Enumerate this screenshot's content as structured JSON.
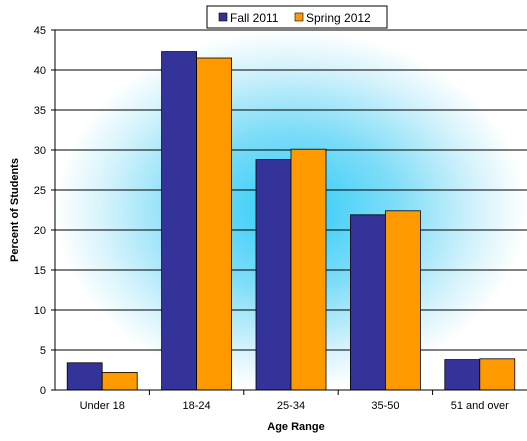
{
  "chart_data": {
    "type": "bar",
    "title": "",
    "xlabel": "Age Range",
    "ylabel": "Percent of Students",
    "categories": [
      "Under 18",
      "18-24",
      "25-34",
      "35-50",
      "51 and over"
    ],
    "series": [
      {
        "name": "Fall 2011",
        "color": "#333399",
        "values": [
          3.4,
          42.3,
          28.8,
          21.9,
          3.8
        ]
      },
      {
        "name": "Spring 2012",
        "color": "#FF9900",
        "values": [
          2.2,
          41.5,
          30.1,
          22.4,
          3.9
        ]
      }
    ],
    "ylim": [
      0,
      45
    ],
    "yticks": [
      "0",
      "5",
      "10",
      "15",
      "20",
      "25",
      "30",
      "35",
      "40",
      "45"
    ],
    "grid": true,
    "legend": "top-center",
    "background": "radial glow #2ECBF7 fading to white"
  }
}
